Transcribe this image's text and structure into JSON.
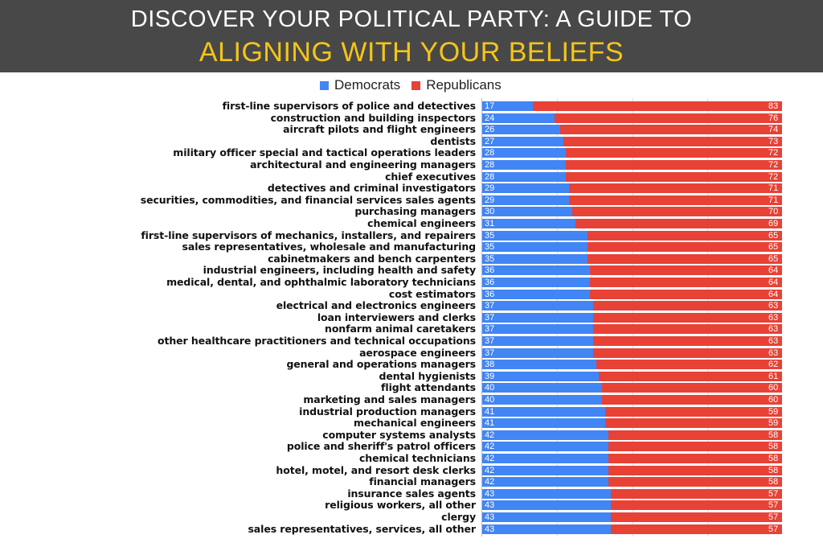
{
  "title_overlay": {
    "line1": "DISCOVER YOUR POLITICAL PARTY: A GUIDE TO",
    "line2": "ALIGNING WITH YOUR BELIEFS"
  },
  "chart_data": {
    "type": "bar",
    "orientation": "horizontal",
    "stacked": true,
    "legend_position": "top",
    "grid": true,
    "xlim": [
      0,
      100
    ],
    "colors": {
      "Democrats": "#4285f4",
      "Republicans": "#e84135"
    },
    "categories": [
      "first-line supervisors of police and detectives",
      "construction and building inspectors",
      "aircraft pilots and flight engineers",
      "dentists",
      "military officer special and tactical operations leaders",
      "architectural and engineering managers",
      "chief executives",
      "detectives and criminal investigators",
      "securities, commodities, and financial services sales agents",
      "purchasing managers",
      "chemical engineers",
      "first-line supervisors of mechanics, installers, and repairers",
      "sales representatives, wholesale and manufacturing",
      "cabinetmakers and bench carpenters",
      "industrial engineers, including health and safety",
      "medical, dental, and ophthalmic laboratory technicians",
      "cost estimators",
      "electrical and electronics engineers",
      "loan interviewers and clerks",
      "nonfarm animal caretakers",
      "other healthcare practitioners and technical occupations",
      "aerospace engineers",
      "general and operations managers",
      "dental hygienists",
      "flight attendants",
      "marketing and sales managers",
      "industrial production managers",
      "mechanical engineers",
      "computer systems analysts",
      "police and sheriff's patrol officers",
      "chemical technicians",
      "hotel, motel, and resort desk clerks",
      "financial managers",
      "insurance sales agents",
      "religious workers, all other",
      "clergy",
      "sales representatives, services, all other"
    ],
    "series": [
      {
        "name": "Democrats",
        "values": [
          17,
          24,
          26,
          27,
          28,
          28,
          28,
          29,
          29,
          30,
          31,
          35,
          35,
          35,
          36,
          36,
          36,
          37,
          37,
          37,
          37,
          37,
          38,
          39,
          40,
          40,
          41,
          41,
          42,
          42,
          42,
          42,
          42,
          43,
          43,
          43,
          43
        ]
      },
      {
        "name": "Republicans",
        "values": [
          83,
          76,
          74,
          73,
          72,
          72,
          72,
          71,
          71,
          70,
          69,
          65,
          65,
          65,
          64,
          64,
          64,
          63,
          63,
          63,
          63,
          63,
          62,
          61,
          60,
          60,
          59,
          59,
          58,
          58,
          58,
          58,
          58,
          57,
          57,
          57,
          57
        ]
      }
    ]
  }
}
